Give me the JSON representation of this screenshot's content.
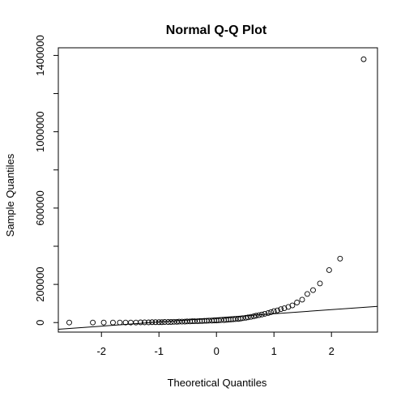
{
  "chart_data": {
    "type": "scatter",
    "title": "Normal Q-Q Plot",
    "xlabel": "Theoretical Quantiles",
    "ylabel": "Sample Quantiles",
    "xlim": [
      -2.75,
      2.8
    ],
    "ylim": [
      -50000,
      1440000
    ],
    "xticks": [
      -2,
      -1,
      0,
      1,
      2
    ],
    "xtick_labels": [
      "-2",
      "-1",
      "0",
      "1",
      "2"
    ],
    "yticks": [
      0,
      200000,
      600000,
      1000000,
      1400000
    ],
    "ytick_labels": [
      "0",
      "200000",
      "600000",
      "1000000",
      "1400000"
    ],
    "y_minor_ticks": [
      400000,
      800000,
      1200000
    ],
    "marker": "open-circle",
    "grid": false,
    "points": [
      [
        -2.56,
        0
      ],
      [
        -2.15,
        0
      ],
      [
        -1.96,
        0
      ],
      [
        -1.8,
        0
      ],
      [
        -1.68,
        0
      ],
      [
        -1.58,
        0
      ],
      [
        -1.49,
        0
      ],
      [
        -1.4,
        0
      ],
      [
        -1.32,
        1000
      ],
      [
        -1.25,
        1000
      ],
      [
        -1.18,
        1000
      ],
      [
        -1.12,
        2000
      ],
      [
        -1.06,
        2000
      ],
      [
        -1.0,
        2000
      ],
      [
        -0.95,
        2000
      ],
      [
        -0.9,
        3000
      ],
      [
        -0.84,
        3000
      ],
      [
        -0.79,
        3000
      ],
      [
        -0.74,
        4000
      ],
      [
        -0.69,
        4000
      ],
      [
        -0.65,
        5000
      ],
      [
        -0.6,
        5000
      ],
      [
        -0.55,
        5000
      ],
      [
        -0.51,
        6000
      ],
      [
        -0.46,
        6000
      ],
      [
        -0.42,
        7000
      ],
      [
        -0.38,
        7000
      ],
      [
        -0.33,
        7000
      ],
      [
        -0.29,
        8000
      ],
      [
        -0.25,
        8000
      ],
      [
        -0.21,
        9000
      ],
      [
        -0.17,
        9000
      ],
      [
        -0.13,
        10000
      ],
      [
        -0.08,
        10000
      ],
      [
        -0.04,
        11000
      ],
      [
        0.0,
        11000
      ],
      [
        0.04,
        12000
      ],
      [
        0.08,
        13000
      ],
      [
        0.13,
        13000
      ],
      [
        0.17,
        14000
      ],
      [
        0.21,
        15000
      ],
      [
        0.25,
        16000
      ],
      [
        0.29,
        17000
      ],
      [
        0.33,
        18000
      ],
      [
        0.38,
        19000
      ],
      [
        0.42,
        21000
      ],
      [
        0.46,
        23000
      ],
      [
        0.51,
        25000
      ],
      [
        0.55,
        27000
      ],
      [
        0.6,
        30000
      ],
      [
        0.65,
        33000
      ],
      [
        0.69,
        36000
      ],
      [
        0.74,
        39000
      ],
      [
        0.79,
        42000
      ],
      [
        0.84,
        46000
      ],
      [
        0.9,
        50000
      ],
      [
        0.95,
        55000
      ],
      [
        1.0,
        60000
      ],
      [
        1.06,
        64000
      ],
      [
        1.12,
        70000
      ],
      [
        1.18,
        75000
      ],
      [
        1.25,
        82000
      ],
      [
        1.32,
        90000
      ],
      [
        1.4,
        105000
      ],
      [
        1.49,
        120000
      ],
      [
        1.58,
        150000
      ],
      [
        1.68,
        170000
      ],
      [
        1.8,
        205000
      ],
      [
        1.96,
        275000
      ],
      [
        2.15,
        335000
      ],
      [
        2.56,
        1380000
      ]
    ],
    "reference_line": {
      "x": [
        -2.75,
        2.8
      ],
      "y": [
        -35000,
        85000
      ]
    }
  }
}
